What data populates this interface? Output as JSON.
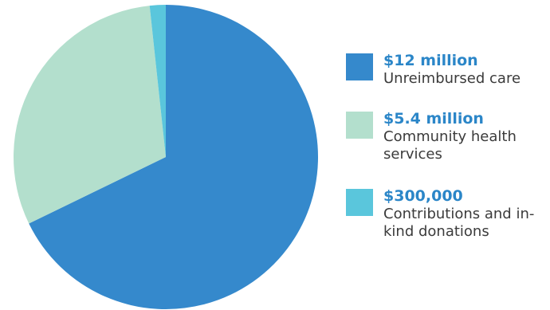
{
  "chart_data": {
    "type": "pie",
    "title": "",
    "slices": [
      {
        "amount_label": "$12 million",
        "label": "Unreimbursed care",
        "value": 12000000,
        "color": "#3589cc"
      },
      {
        "amount_label": "$5.4 million",
        "label": "Community health services",
        "value": 5400000,
        "color": "#b3dfcd"
      },
      {
        "amount_label": "$300,000",
        "label": "Contributions and in-kind donations",
        "value": 300000,
        "color": "#5ac6dc"
      }
    ],
    "legend_placement": "right"
  }
}
